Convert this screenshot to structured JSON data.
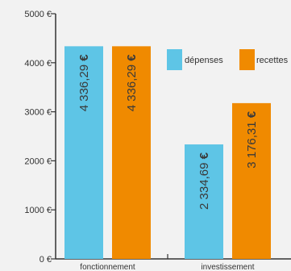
{
  "chart_data": {
    "type": "bar",
    "title": "",
    "xlabel": "",
    "ylabel": "",
    "ylim": [
      0,
      5000
    ],
    "y_ticks": [
      0,
      1000,
      2000,
      3000,
      4000,
      5000
    ],
    "y_tick_labels": [
      "0 €",
      "1000 €",
      "2000 €",
      "3000 €",
      "4000 €",
      "5000 €"
    ],
    "categories": [
      "fonctionnement",
      "investissement"
    ],
    "series": [
      {
        "name": "dépenses",
        "color": "#5ec5e6",
        "values": [
          4336.29,
          2334.69
        ],
        "labels": [
          "4 336,29",
          "2 334,69"
        ]
      },
      {
        "name": "recettes",
        "color": "#f08a00",
        "values": [
          4336.29,
          3176.31
        ],
        "labels": [
          "4 336,29",
          "3 176,31"
        ]
      }
    ],
    "unit_symbol": "€",
    "grid": false,
    "legend_position": "top-right",
    "background_color": "#f2f2f2",
    "axis_color": "#333333"
  }
}
